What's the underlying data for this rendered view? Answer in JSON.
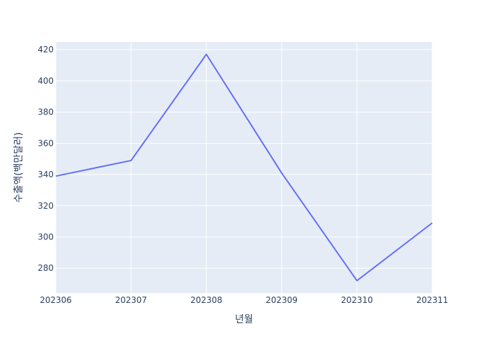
{
  "chart_data": {
    "type": "line",
    "xlabel": "년월",
    "ylabel": "수출액(백만달러)",
    "x": [
      "202306",
      "202307",
      "202308",
      "202309",
      "202310",
      "202311"
    ],
    "series": [
      {
        "values": [
          339,
          349,
          417,
          341,
          272,
          309
        ]
      }
    ],
    "xlim": [
      0,
      5
    ],
    "ylim": [
      264,
      425
    ],
    "yticks": [
      280,
      300,
      320,
      340,
      360,
      380,
      400,
      420
    ],
    "grid": true,
    "line_color": "#636efa",
    "plot_bg": "#e5ecf6",
    "grid_color": "#ffffff"
  }
}
